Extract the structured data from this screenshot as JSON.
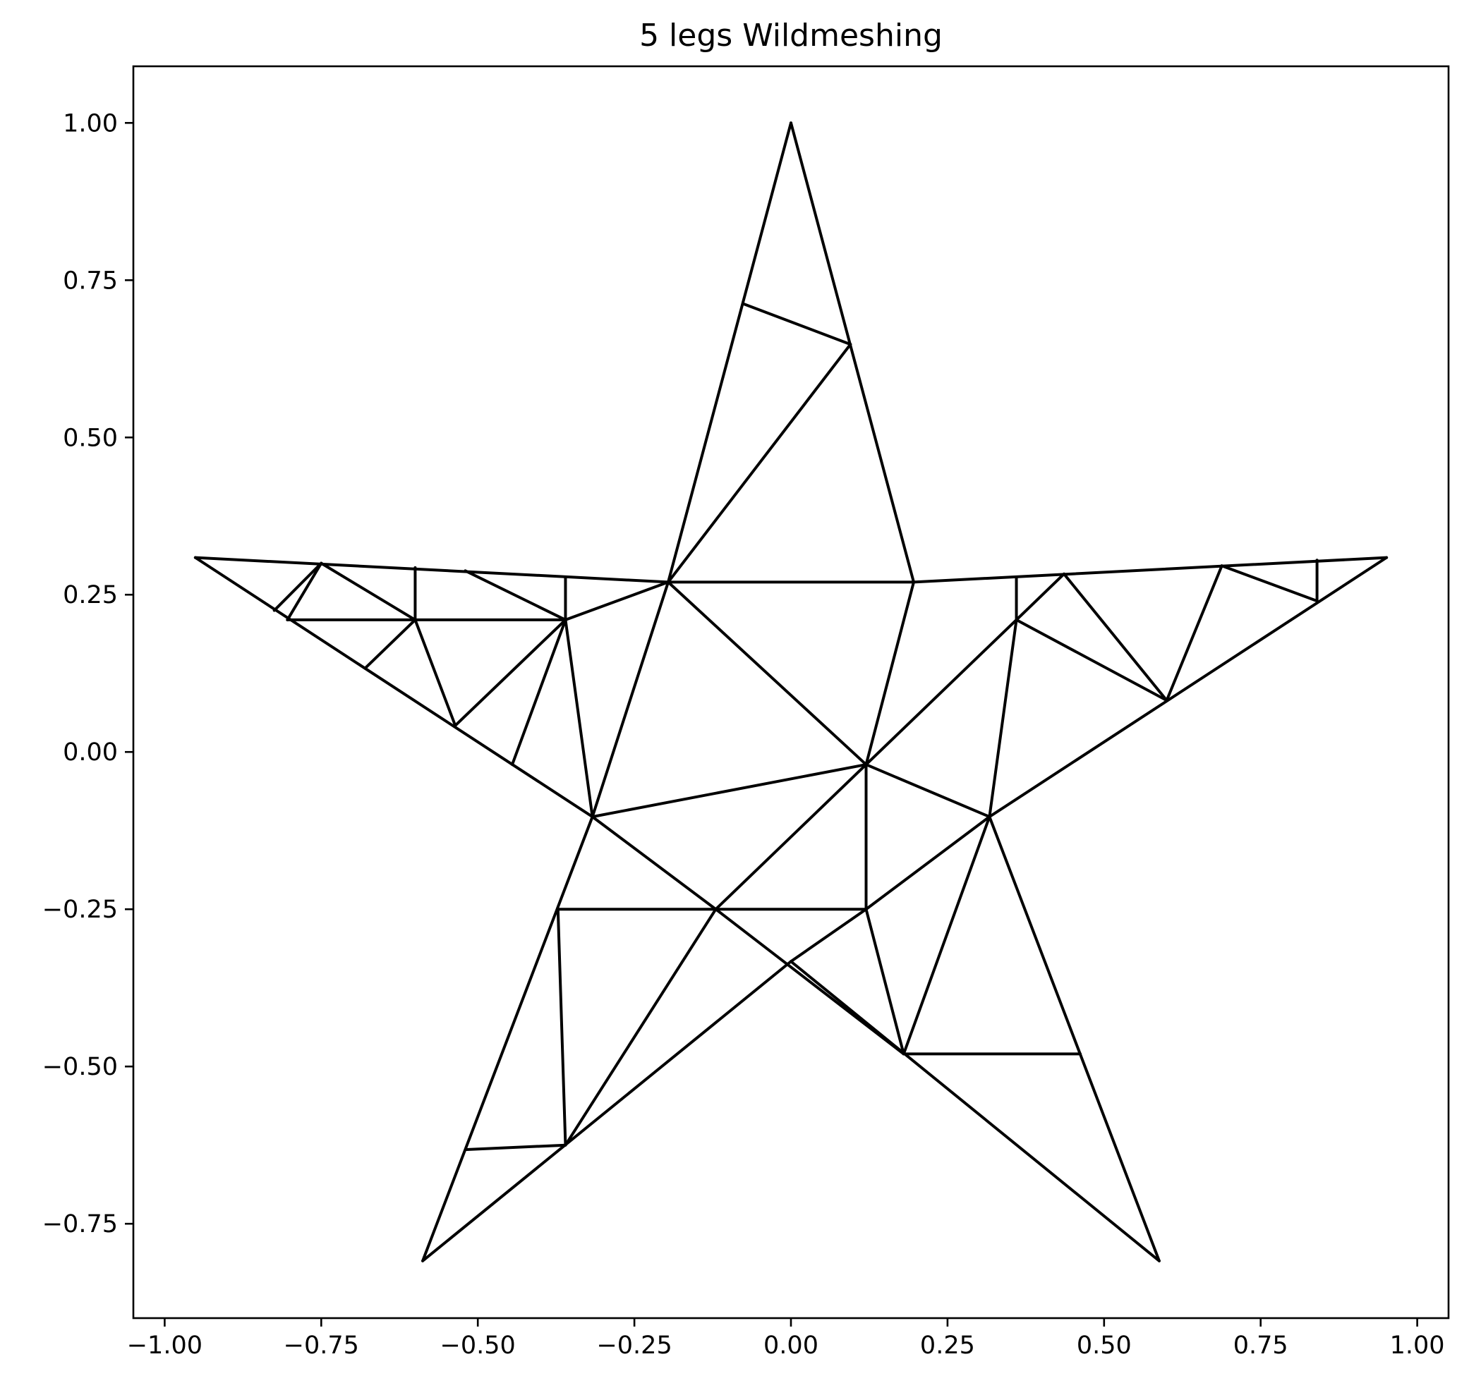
{
  "chart_data": {
    "type": "line",
    "title": "5 legs Wildmeshing",
    "xlabel": "",
    "ylabel": "",
    "xlim": [
      -1.05,
      1.05
    ],
    "ylim": [
      -0.9,
      1.09
    ],
    "x_ticks": [
      -1.0,
      -0.75,
      -0.5,
      -0.25,
      0.0,
      0.25,
      0.5,
      0.75,
      1.0
    ],
    "y_ticks": [
      1.0,
      0.75,
      0.5,
      0.25,
      0.0,
      -0.25,
      -0.5,
      -0.75
    ],
    "x_tick_labels": [
      "−1.00",
      "−0.75",
      "−0.50",
      "−0.25",
      "0.00",
      "0.25",
      "0.50",
      "0.75",
      "1.00"
    ],
    "y_tick_labels": [
      "1.00",
      "0.75",
      "0.50",
      "0.25",
      "0.00",
      "−0.25",
      "−0.50",
      "−0.75"
    ],
    "grid": false,
    "legend": "none",
    "line_color": "#000000",
    "segments": [
      [
        [
          0.0,
          1.0
        ],
        [
          0.196,
          0.27
        ]
      ],
      [
        [
          0.0,
          1.0
        ],
        [
          -0.196,
          0.27
        ]
      ],
      [
        [
          -0.951,
          0.309
        ],
        [
          -0.196,
          0.27
        ]
      ],
      [
        [
          -0.951,
          0.309
        ],
        [
          -0.317,
          -0.103
        ]
      ],
      [
        [
          0.951,
          0.309
        ],
        [
          0.196,
          0.27
        ]
      ],
      [
        [
          0.951,
          0.309
        ],
        [
          0.317,
          -0.103
        ]
      ],
      [
        [
          -0.588,
          -0.809
        ],
        [
          -0.317,
          -0.103
        ]
      ],
      [
        [
          -0.588,
          -0.809
        ],
        [
          0.0,
          -0.333
        ]
      ],
      [
        [
          0.588,
          -0.809
        ],
        [
          0.317,
          -0.103
        ]
      ],
      [
        [
          0.588,
          -0.809
        ],
        [
          0.0,
          -0.333
        ]
      ],
      [
        [
          -0.075,
          0.712
        ],
        [
          0.095,
          0.648
        ]
      ],
      [
        [
          0.095,
          0.648
        ],
        [
          -0.196,
          0.27
        ]
      ],
      [
        [
          -0.196,
          0.27
        ],
        [
          0.196,
          0.27
        ]
      ],
      [
        [
          -0.196,
          0.27
        ],
        [
          0.12,
          -0.02
        ]
      ],
      [
        [
          0.196,
          0.27
        ],
        [
          0.12,
          -0.02
        ]
      ],
      [
        [
          -0.196,
          0.27
        ],
        [
          -0.36,
          0.21
        ]
      ],
      [
        [
          -0.196,
          0.27
        ],
        [
          -0.317,
          -0.103
        ]
      ],
      [
        [
          -0.317,
          -0.103
        ],
        [
          0.12,
          -0.02
        ]
      ],
      [
        [
          -0.317,
          -0.103
        ],
        [
          -0.12,
          -0.25
        ]
      ],
      [
        [
          -0.372,
          -0.25
        ],
        [
          0.12,
          -0.25
        ]
      ],
      [
        [
          0.12,
          -0.02
        ],
        [
          -0.12,
          -0.25
        ]
      ],
      [
        [
          0.12,
          -0.02
        ],
        [
          0.12,
          -0.25
        ]
      ],
      [
        [
          0.12,
          -0.02
        ],
        [
          0.36,
          0.21
        ]
      ],
      [
        [
          0.12,
          -0.02
        ],
        [
          0.317,
          -0.103
        ]
      ],
      [
        [
          0.317,
          -0.103
        ],
        [
          0.12,
          -0.25
        ]
      ],
      [
        [
          0.12,
          -0.25
        ],
        [
          0.0,
          -0.333
        ]
      ],
      [
        [
          0.12,
          -0.25
        ],
        [
          0.18,
          -0.48
        ]
      ],
      [
        [
          0.317,
          -0.103
        ],
        [
          0.18,
          -0.48
        ]
      ],
      [
        [
          0.18,
          -0.48
        ],
        [
          0.462,
          -0.48
        ]
      ],
      [
        [
          -0.12,
          -0.25
        ],
        [
          0.18,
          -0.48
        ]
      ],
      [
        [
          -0.12,
          -0.25
        ],
        [
          -0.36,
          -0.625
        ]
      ],
      [
        [
          -0.372,
          -0.25
        ],
        [
          -0.36,
          -0.625
        ]
      ],
      [
        [
          -0.36,
          -0.625
        ],
        [
          -0.518,
          -0.632
        ]
      ],
      [
        [
          0.36,
          0.21
        ],
        [
          0.317,
          -0.103
        ]
      ],
      [
        [
          0.36,
          0.21
        ],
        [
          0.36,
          0.278
        ]
      ],
      [
        [
          0.36,
          0.21
        ],
        [
          0.436,
          0.283
        ]
      ],
      [
        [
          0.36,
          0.21
        ],
        [
          0.6,
          0.082
        ]
      ],
      [
        [
          0.436,
          0.283
        ],
        [
          0.6,
          0.082
        ]
      ],
      [
        [
          0.6,
          0.082
        ],
        [
          0.688,
          0.296
        ]
      ],
      [
        [
          0.688,
          0.296
        ],
        [
          0.84,
          0.24
        ]
      ],
      [
        [
          0.84,
          0.24
        ],
        [
          0.84,
          0.305
        ]
      ],
      [
        [
          -0.36,
          0.21
        ],
        [
          -0.36,
          0.278
        ]
      ],
      [
        [
          -0.36,
          0.21
        ],
        [
          -0.52,
          0.288
        ]
      ],
      [
        [
          -0.36,
          0.21
        ],
        [
          -0.804,
          0.21
        ]
      ],
      [
        [
          -0.36,
          0.21
        ],
        [
          -0.536,
          0.042
        ]
      ],
      [
        [
          -0.36,
          0.21
        ],
        [
          -0.445,
          -0.02
        ]
      ],
      [
        [
          -0.36,
          0.21
        ],
        [
          -0.317,
          -0.103
        ]
      ],
      [
        [
          -0.6,
          0.21
        ],
        [
          -0.6,
          0.293
        ]
      ],
      [
        [
          -0.6,
          0.21
        ],
        [
          -0.75,
          0.3
        ]
      ],
      [
        [
          -0.6,
          0.21
        ],
        [
          -0.68,
          0.133
        ]
      ],
      [
        [
          -0.6,
          0.21
        ],
        [
          -0.536,
          0.042
        ]
      ],
      [
        [
          -0.75,
          0.3
        ],
        [
          -0.804,
          0.21
        ]
      ],
      [
        [
          -0.75,
          0.3
        ],
        [
          -0.825,
          0.225
        ]
      ]
    ]
  }
}
